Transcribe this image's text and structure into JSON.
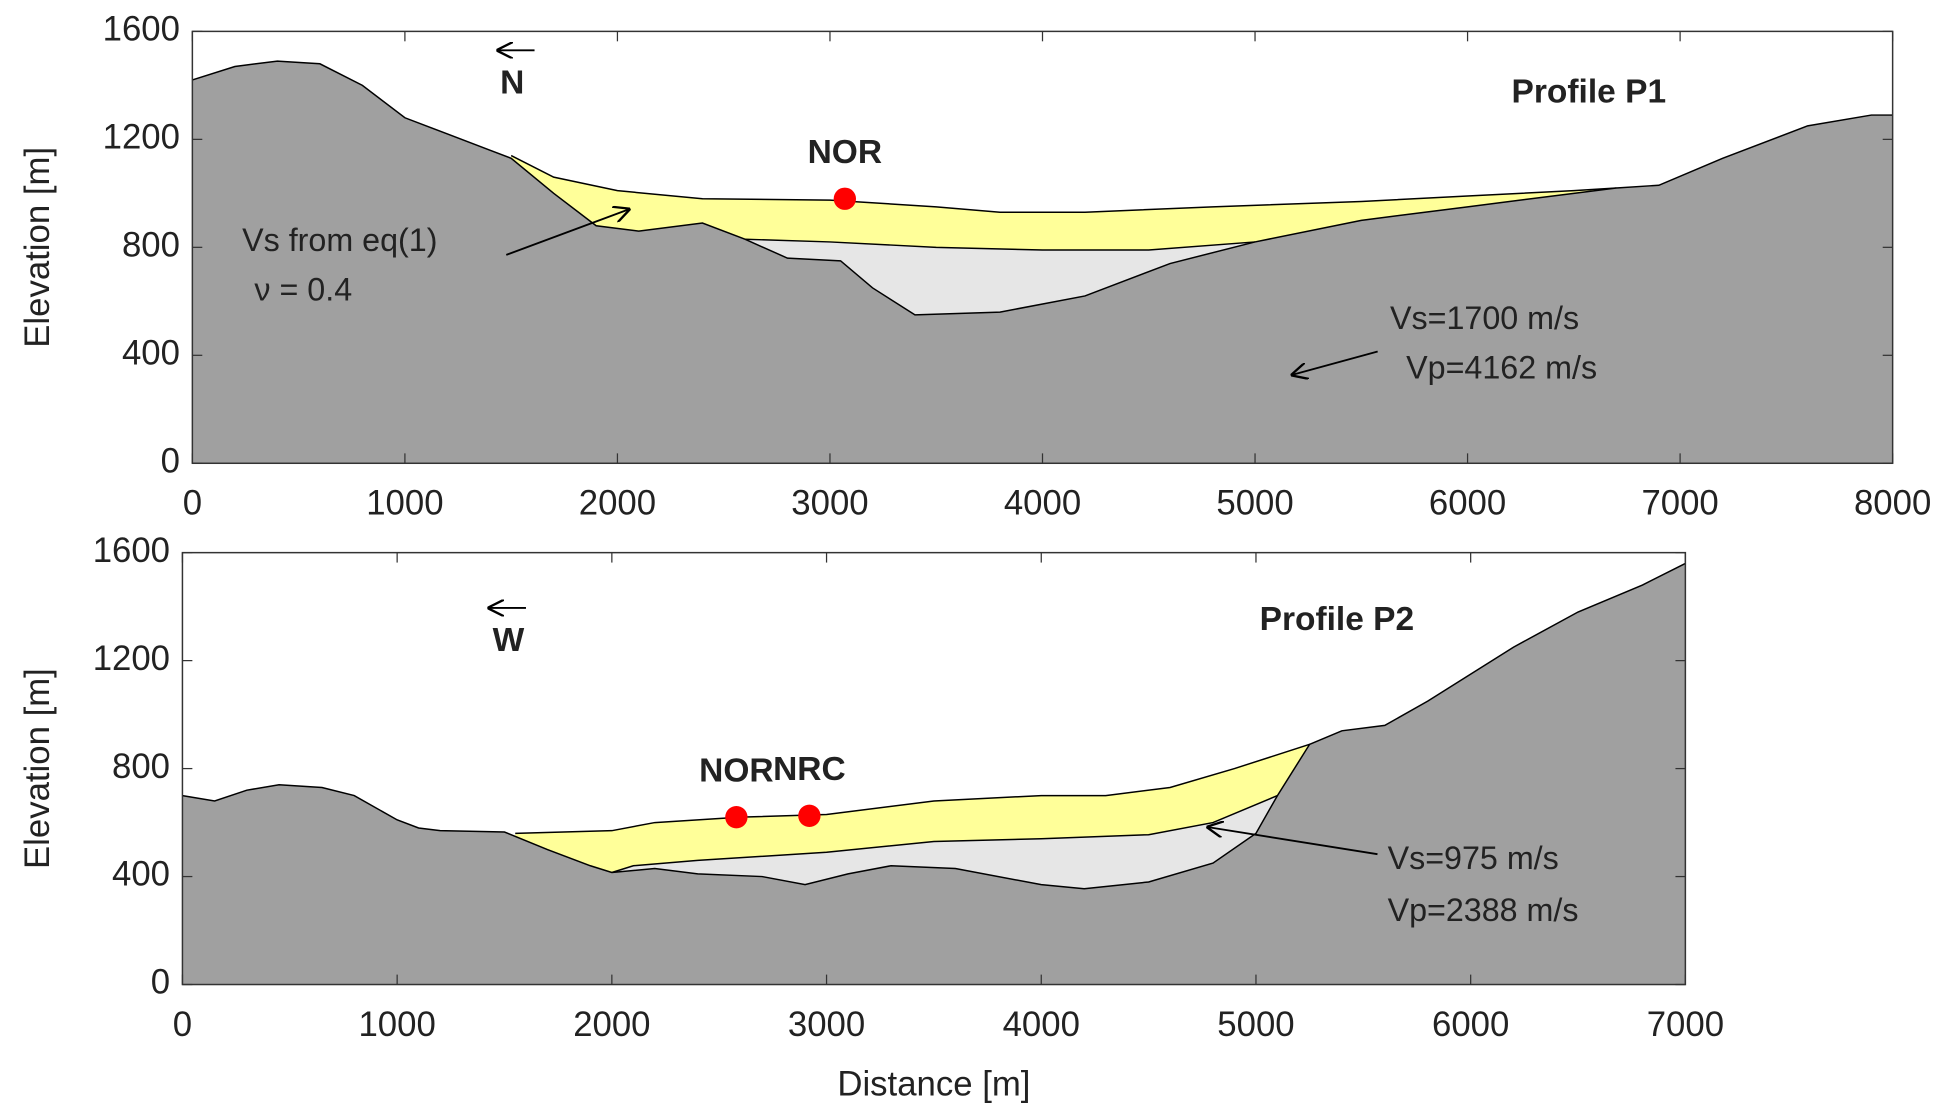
{
  "chart_data": [
    {
      "type": "area",
      "ylabel": "Elevation [m]",
      "xlim": [
        0,
        8000
      ],
      "xticks": [
        0,
        1000,
        2000,
        3000,
        4000,
        5000,
        6000,
        7000,
        8000
      ],
      "ylim": [
        0,
        1600
      ],
      "yticks": [
        0,
        400,
        800,
        1200,
        1600
      ],
      "series": [
        {
          "color": "#ffff99",
          "x": [
            1500,
            1700,
            2000,
            2400,
            3000,
            3500,
            3800,
            4200,
            4800,
            5500,
            6000,
            6500,
            6700
          ],
          "values": [
            1140,
            1060,
            1010,
            980,
            975,
            950,
            930,
            930,
            950,
            970,
            990,
            1010,
            1020
          ]
        },
        {
          "color": "#e6e6e6",
          "x": [
            2600,
            3000,
            3500,
            4000,
            4500,
            5000
          ],
          "values": [
            830,
            820,
            800,
            790,
            790,
            820
          ]
        },
        {
          "color": "#a0a0a0",
          "x": [
            0,
            200,
            400,
            600,
            800,
            1000,
            1200,
            1400,
            1500,
            1700,
            1900,
            2100,
            2400,
            2600,
            2800,
            3050,
            3200,
            3400,
            3800,
            4200,
            4600,
            5000,
            5500,
            6000,
            6500,
            6700,
            6900,
            7200,
            7600,
            7900,
            8000
          ],
          "values": [
            1420,
            1470,
            1490,
            1480,
            1400,
            1280,
            1220,
            1160,
            1130,
            1000,
            880,
            860,
            890,
            830,
            760,
            750,
            650,
            550,
            560,
            620,
            740,
            820,
            900,
            950,
            1000,
            1020,
            1030,
            1130,
            1250,
            1290,
            1290
          ]
        }
      ],
      "point_color": "#ff0000",
      "points": [
        {
          "label": "NOR",
          "x": 3070,
          "y": 980
        }
      ],
      "annotations": [
        {
          "text": "N",
          "x": 1448,
          "y": 1402,
          "bold": true
        },
        {
          "text": "Profile P1",
          "x": 6207,
          "y": 1370,
          "bold": true
        },
        {
          "text": "Vs from eq(1)",
          "x": 234,
          "y": 818,
          "bold": false
        },
        {
          "text": "ν = 0.4",
          "x": 292,
          "y": 634,
          "bold": false
        },
        {
          "text": "Vs=1700 m/s",
          "x": 5635,
          "y": 529,
          "bold": false
        },
        {
          "text": "Vp=4162 m/s",
          "x": 5711,
          "y": 345,
          "bold": false
        }
      ],
      "arrows": [
        {
          "from": [
            1477,
            772
          ],
          "to": [
            2061,
            943
          ]
        },
        {
          "from": [
            5577,
            414
          ],
          "to": [
            5168,
            326
          ]
        },
        {
          "from": [
            1610,
            1530
          ],
          "to": [
            1430,
            1530
          ]
        }
      ]
    },
    {
      "type": "area",
      "xlabel": "Distance [m]",
      "ylabel": "Elevation [m]",
      "xlim": [
        0,
        7000
      ],
      "xticks": [
        0,
        1000,
        2000,
        3000,
        4000,
        5000,
        6000,
        7000
      ],
      "ylim": [
        0,
        1600
      ],
      "yticks": [
        0,
        400,
        800,
        1200,
        1600
      ],
      "series": [
        {
          "color": "#ffff99",
          "x": [
            1550,
            2000,
            2200,
            2600,
            3000,
            3500,
            4000,
            4300,
            4600,
            4900,
            5250
          ],
          "values": [
            560,
            570,
            600,
            620,
            630,
            680,
            700,
            700,
            730,
            800,
            890
          ]
        },
        {
          "color": "#e6e6e6",
          "x": [
            2000,
            2100,
            2400,
            3000,
            3500,
            4000,
            4500,
            4800,
            5100
          ],
          "values": [
            415,
            440,
            460,
            490,
            530,
            540,
            555,
            600,
            700
          ]
        },
        {
          "color": "#a0a0a0",
          "x": [
            0,
            150,
            300,
            450,
            650,
            800,
            1000,
            1100,
            1200,
            1500,
            1700,
            1900,
            2000,
            2200,
            2400,
            2700,
            2900,
            3100,
            3300,
            3600,
            4000,
            4200,
            4500,
            4800,
            5000,
            5100,
            5250,
            5400,
            5600,
            5800,
            6000,
            6200,
            6500,
            6800,
            7000
          ],
          "values": [
            700,
            680,
            720,
            740,
            730,
            700,
            610,
            580,
            570,
            565,
            500,
            440,
            415,
            430,
            410,
            400,
            370,
            410,
            440,
            430,
            370,
            355,
            380,
            450,
            560,
            700,
            890,
            940,
            960,
            1050,
            1150,
            1250,
            1380,
            1480,
            1560
          ]
        }
      ],
      "point_color": "#ff0000",
      "points": [
        {
          "label": "NOR",
          "x": 2580,
          "y": 620
        },
        {
          "label": "NRC",
          "x": 2920,
          "y": 625
        }
      ],
      "annotations": [
        {
          "text": "W",
          "x": 1445,
          "y": 1269,
          "bold": true
        },
        {
          "text": "Profile P2",
          "x": 5017,
          "y": 1347,
          "bold": true
        },
        {
          "text": "Vs=975 m/s",
          "x": 5613,
          "y": 460,
          "bold": false
        },
        {
          "text": "Vp=2388 m/s",
          "x": 5613,
          "y": 267,
          "bold": false
        }
      ],
      "arrows": [
        {
          "from": [
            5566,
            483
          ],
          "to": [
            4769,
            584
          ]
        },
        {
          "from": [
            1600,
            1395
          ],
          "to": [
            1420,
            1395
          ]
        }
      ]
    }
  ]
}
